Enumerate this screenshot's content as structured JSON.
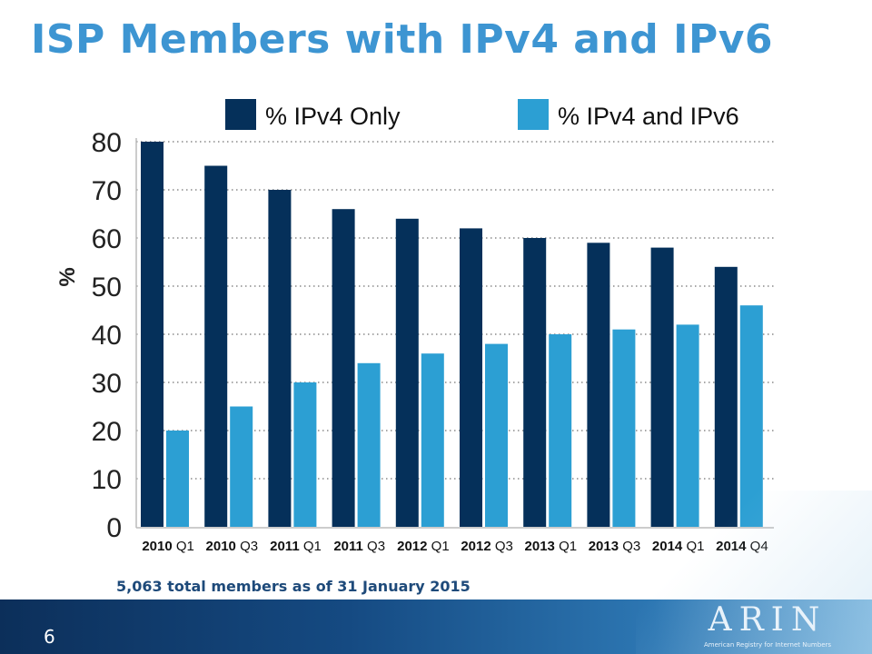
{
  "slide": {
    "title": "ISP Members with IPv4 and IPv6",
    "note": "5,063 total members as of 31 January 2015",
    "page_number": "6",
    "logo_text": "ARIN",
    "logo_subtitle": "American Registry for Internet Numbers"
  },
  "colors": {
    "ipv4_only": "#05305a",
    "ipv4_and_ipv6": "#2c9fd3",
    "title": "#3d95d2"
  },
  "chart_data": {
    "type": "bar",
    "ylabel": "%",
    "ylim": [
      0,
      80
    ],
    "yticks": [
      0,
      10,
      20,
      30,
      40,
      50,
      60,
      70,
      80
    ],
    "grid": true,
    "legend_position": "top",
    "categories": [
      {
        "year": "2010",
        "quarter": "Q1"
      },
      {
        "year": "2010",
        "quarter": "Q3"
      },
      {
        "year": "2011",
        "quarter": "Q1"
      },
      {
        "year": "2011",
        "quarter": "Q3"
      },
      {
        "year": "2012",
        "quarter": "Q1"
      },
      {
        "year": "2012",
        "quarter": "Q3"
      },
      {
        "year": "2013",
        "quarter": "Q1"
      },
      {
        "year": "2013",
        "quarter": "Q3"
      },
      {
        "year": "2014",
        "quarter": "Q1"
      },
      {
        "year": "2014",
        "quarter": "Q4"
      }
    ],
    "series": [
      {
        "name": "% IPv4 Only",
        "values": [
          80,
          75,
          70,
          66,
          64,
          62,
          60,
          59,
          58,
          54
        ]
      },
      {
        "name": "% IPv4 and IPv6",
        "values": [
          20,
          25,
          30,
          34,
          36,
          38,
          40,
          41,
          42,
          46
        ]
      }
    ]
  }
}
